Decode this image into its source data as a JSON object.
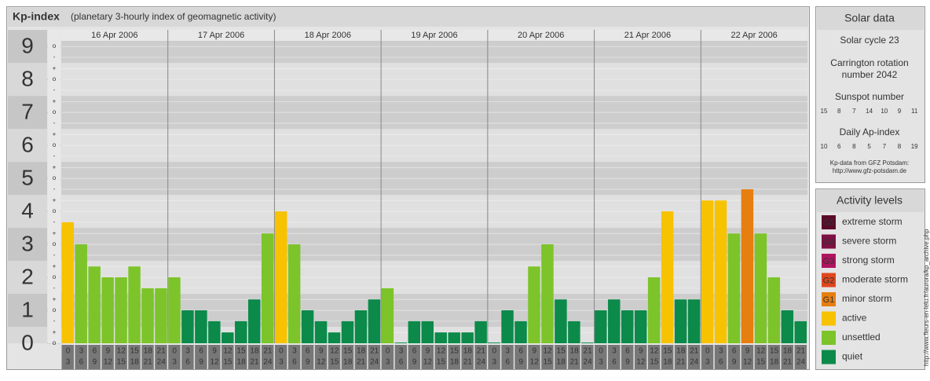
{
  "chart_data": {
    "type": "bar",
    "title": "Kp-index",
    "subtitle": "(planetary 3-hourly index of geomagnetic activity)",
    "ylim": [
      0,
      9.17
    ],
    "yticks": [
      0,
      1,
      2,
      3,
      4,
      5,
      6,
      7,
      8,
      9
    ],
    "minor_ticks": [
      {
        "value": 0,
        "label": "o"
      },
      {
        "value": 0.33,
        "label": "+"
      },
      {
        "value": 0.67,
        "label": "-"
      },
      {
        "value": 1,
        "label": "o"
      },
      {
        "value": 1.33,
        "label": "+"
      },
      {
        "value": 1.67,
        "label": "-"
      },
      {
        "value": 2,
        "label": "o"
      },
      {
        "value": 2.33,
        "label": "+"
      },
      {
        "value": 2.67,
        "label": "-"
      },
      {
        "value": 3,
        "label": "o"
      },
      {
        "value": 3.33,
        "label": "+"
      },
      {
        "value": 3.67,
        "label": "-"
      },
      {
        "value": 4,
        "label": "o"
      },
      {
        "value": 4.33,
        "label": "+"
      },
      {
        "value": 4.67,
        "label": "-"
      },
      {
        "value": 5,
        "label": "o"
      },
      {
        "value": 5.33,
        "label": "+"
      },
      {
        "value": 5.67,
        "label": "-"
      },
      {
        "value": 6,
        "label": "o"
      },
      {
        "value": 6.33,
        "label": "+"
      },
      {
        "value": 6.67,
        "label": "-"
      },
      {
        "value": 7,
        "label": "o"
      },
      {
        "value": 7.33,
        "label": "+"
      },
      {
        "value": 7.67,
        "label": "-"
      },
      {
        "value": 8,
        "label": "o"
      },
      {
        "value": 8.33,
        "label": "+"
      },
      {
        "value": 8.67,
        "label": "-"
      },
      {
        "value": 9,
        "label": "o"
      }
    ],
    "hours": [
      [
        "0",
        "3"
      ],
      [
        "3",
        "6"
      ],
      [
        "6",
        "9"
      ],
      [
        "9",
        "12"
      ],
      [
        "12",
        "15"
      ],
      [
        "15",
        "18"
      ],
      [
        "18",
        "21"
      ],
      [
        "21",
        "24"
      ]
    ],
    "days": [
      {
        "date": "16 Apr 2006",
        "values": [
          3.67,
          3,
          2.33,
          2,
          2,
          2.33,
          1.67,
          1.67
        ],
        "colors": [
          "#f7c200",
          "#7cc42a",
          "#7cc42a",
          "#7cc42a",
          "#7cc42a",
          "#7cc42a",
          "#7cc42a",
          "#7cc42a"
        ]
      },
      {
        "date": "17 Apr 2006",
        "values": [
          2,
          1,
          1,
          0.67,
          0.33,
          0.67,
          1.33,
          3.33
        ],
        "colors": [
          "#7cc42a",
          "#0b8a4a",
          "#0b8a4a",
          "#0b8a4a",
          "#0b8a4a",
          "#0b8a4a",
          "#0b8a4a",
          "#7cc42a"
        ]
      },
      {
        "date": "18 Apr 2006",
        "values": [
          4,
          3,
          1,
          0.67,
          0.33,
          0.67,
          1,
          1.33
        ],
        "colors": [
          "#f7c200",
          "#7cc42a",
          "#0b8a4a",
          "#0b8a4a",
          "#0b8a4a",
          "#0b8a4a",
          "#0b8a4a",
          "#0b8a4a"
        ]
      },
      {
        "date": "19 Apr 2006",
        "values": [
          1.67,
          0,
          0.67,
          0.67,
          0.33,
          0.33,
          0.33,
          0.67
        ],
        "colors": [
          "#7cc42a",
          "#0b8a4a",
          "#0b8a4a",
          "#0b8a4a",
          "#0b8a4a",
          "#0b8a4a",
          "#0b8a4a",
          "#0b8a4a"
        ]
      },
      {
        "date": "20 Apr 2006",
        "values": [
          0,
          1,
          0.67,
          2.33,
          3,
          1.33,
          0.67,
          0
        ],
        "colors": [
          "#0b8a4a",
          "#0b8a4a",
          "#0b8a4a",
          "#7cc42a",
          "#7cc42a",
          "#0b8a4a",
          "#0b8a4a",
          "#0b8a4a"
        ]
      },
      {
        "date": "21 Apr 2006",
        "values": [
          1,
          1.33,
          1,
          1,
          2,
          4,
          1.33,
          1.33
        ],
        "colors": [
          "#0b8a4a",
          "#0b8a4a",
          "#0b8a4a",
          "#0b8a4a",
          "#7cc42a",
          "#f7c200",
          "#0b8a4a",
          "#0b8a4a"
        ]
      },
      {
        "date": "22 Apr 2006",
        "values": [
          4.33,
          4.33,
          3.33,
          4.67,
          3.33,
          2,
          1,
          0.67
        ],
        "colors": [
          "#f7c200",
          "#f7c200",
          "#7cc42a",
          "#e67e10",
          "#7cc42a",
          "#7cc42a",
          "#0b8a4a",
          "#0b8a4a"
        ]
      }
    ]
  },
  "solar": {
    "title": "Solar data",
    "cycle": "Solar cycle 23",
    "carrington_1": "Carrington rotation",
    "carrington_2": "number 2042",
    "sunspot_title": "Sunspot number",
    "sunspot": [
      15,
      8,
      7,
      14,
      10,
      9,
      11
    ],
    "ap_title": "Daily Ap-index",
    "ap": [
      10,
      6,
      8,
      5,
      7,
      8,
      19
    ],
    "source_1": "Kp-data from GFZ Potsdam:",
    "source_2": "http://www.gfz-potsdam.de"
  },
  "legend": {
    "title": "Activity levels",
    "items": [
      {
        "badge": "G5",
        "label": "extreme storm",
        "color": "#5a0a28"
      },
      {
        "badge": "G4",
        "label": "severe storm",
        "color": "#7d1044"
      },
      {
        "badge": "G3",
        "label": "strong storm",
        "color": "#b0145e"
      },
      {
        "badge": "G2",
        "label": "moderate storm",
        "color": "#e0461e"
      },
      {
        "badge": "G1",
        "label": "minor storm",
        "color": "#e67e10"
      },
      {
        "label": "active",
        "color": "#f7c200"
      },
      {
        "label": "unsettled",
        "color": "#7cc42a"
      },
      {
        "label": "quiet",
        "color": "#0b8a4a"
      }
    ]
  },
  "side_url": "http://www.fleurs-en-lelu.fr/aurora/kp_archive.php"
}
